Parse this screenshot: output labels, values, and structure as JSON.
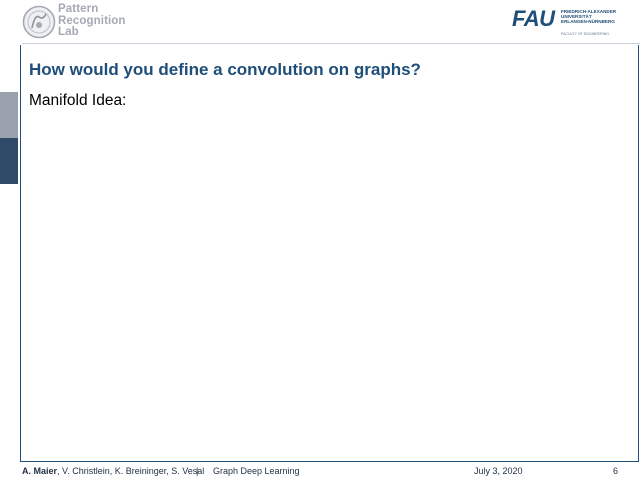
{
  "header": {
    "lab_name_lines": [
      "Pattern",
      "Recognition",
      "Lab"
    ],
    "university_mark": "FAU",
    "university_name_lines": [
      "FRIEDRICH-ALEXANDER",
      "UNIVERSITÄT",
      "ERLANGEN-NÜRNBERG"
    ],
    "faculty": "FACULTY OF ENGINEERING"
  },
  "slide": {
    "title": "How would you define a convolution on graphs?",
    "body": "Manifold Idea:"
  },
  "footer": {
    "author_lead": "A. Maier",
    "authors_rest": ", V. Christlein, K. Breininger, S. Vesal",
    "separator": "|",
    "course": "Graph Deep Learning",
    "date": "July 3, 2020",
    "page_number": "6"
  },
  "colors": {
    "accent": "#1f4e79",
    "lab_text": "#a4a9b3",
    "tab_light": "#9aa3ad",
    "tab_dark": "#2e4a68"
  },
  "icons": {
    "lab_logo": "pattern-recognition-lab-logo",
    "university_logo": "fau-logo"
  }
}
